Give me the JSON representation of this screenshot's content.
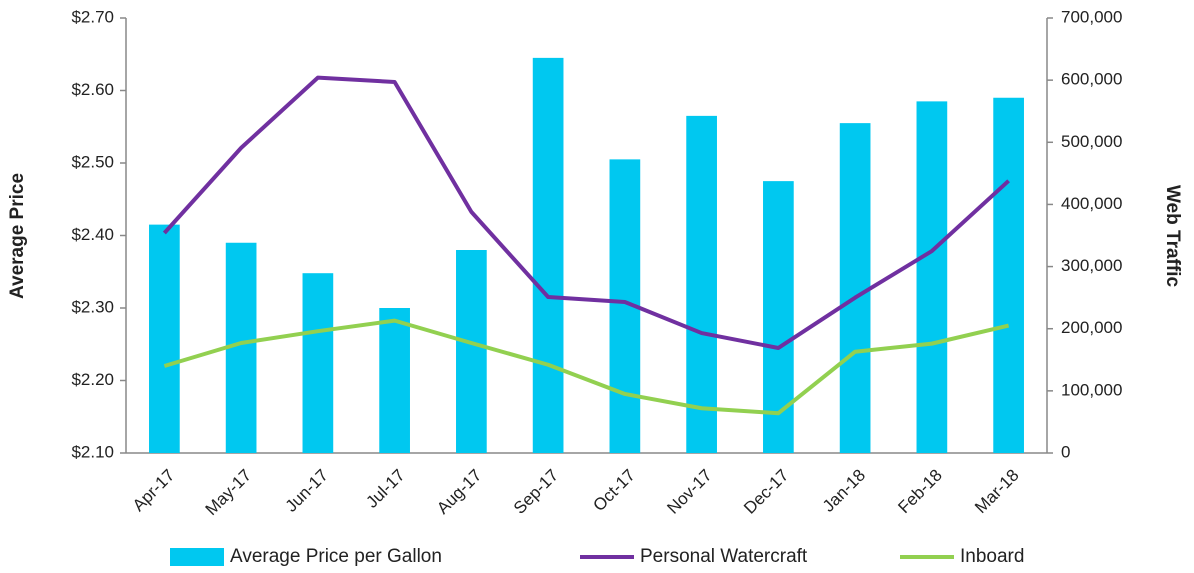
{
  "chart_data": {
    "type": "bar_line",
    "categories": [
      "Apr-17",
      "May-17",
      "Jun-17",
      "Jul-17",
      "Aug-17",
      "Sep-17",
      "Oct-17",
      "Nov-17",
      "Dec-17",
      "Jan-18",
      "Feb-18",
      "Mar-18"
    ],
    "series": [
      {
        "name": "Average Price per Gallon",
        "type": "bar",
        "color": "#00c8f0",
        "axis": "y",
        "values": [
          2.415,
          2.39,
          2.348,
          2.3,
          2.38,
          2.645,
          2.505,
          2.565,
          2.475,
          2.555,
          2.585,
          2.59
        ]
      },
      {
        "name": "Personal Watercraft",
        "type": "line",
        "color": "#7030a0",
        "axis": "y2",
        "values": [
          354000,
          491000,
          604000,
          597000,
          388000,
          251000,
          243000,
          193000,
          169000,
          250000,
          325000,
          438000
        ]
      },
      {
        "name": "Inboard",
        "type": "line",
        "color": "#92d050",
        "axis": "y2",
        "values": [
          140000,
          177000,
          196000,
          213000,
          177000,
          142000,
          95000,
          72000,
          64000,
          163000,
          176000,
          205000
        ]
      }
    ],
    "ylabel": "Average Price",
    "y2label": "Web Traffic",
    "ylim": [
      2.1,
      2.7
    ],
    "yticks": [
      {
        "value": 2.1,
        "label": "$2.10"
      },
      {
        "value": 2.2,
        "label": "$2.20"
      },
      {
        "value": 2.3,
        "label": "$2.30"
      },
      {
        "value": 2.4,
        "label": "$2.40"
      },
      {
        "value": 2.5,
        "label": "$2.50"
      },
      {
        "value": 2.6,
        "label": "$2.60"
      },
      {
        "value": 2.7,
        "label": "$2.70"
      }
    ],
    "y2lim": [
      0,
      700000
    ],
    "y2ticks": [
      0,
      {
        "value": 100000,
        "label": "100,000"
      },
      {
        "value": 200000,
        "label": "200,000"
      },
      {
        "value": 300000,
        "label": "300,000"
      },
      {
        "value": 400000,
        "label": "400,000"
      },
      {
        "value": 500000,
        "label": "500,000"
      },
      {
        "value": 600000,
        "label": "600,000"
      },
      {
        "value": 700000,
        "label": "700,000"
      }
    ],
    "legend": "bottom",
    "grid": false
  }
}
